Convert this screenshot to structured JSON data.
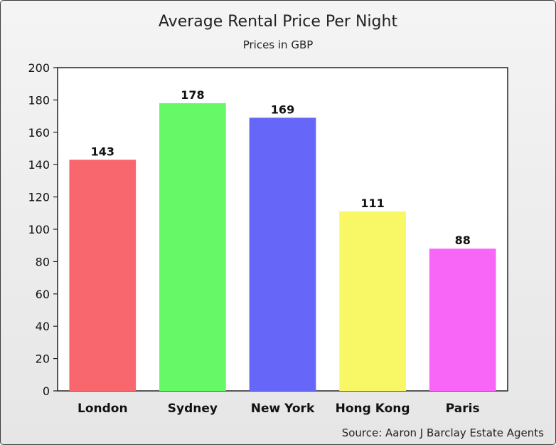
{
  "chart_data": {
    "type": "bar",
    "title": "Average Rental Price Per Night",
    "subtitle": "Prices in GBP",
    "categories": [
      "London",
      "Sydney",
      "New York",
      "Hong Kong",
      "Paris"
    ],
    "values": [
      143,
      178,
      169,
      111,
      88
    ],
    "data_labels": [
      "143",
      "178",
      "169",
      "111",
      "88"
    ],
    "colors": [
      "#f8666e",
      "#66f866",
      "#6666f8",
      "#f8f866",
      "#f866f8"
    ],
    "ylim": [
      0,
      200
    ],
    "yticks": [
      0,
      20,
      40,
      60,
      80,
      100,
      120,
      140,
      160,
      180,
      200
    ],
    "ytick_labels": [
      "0",
      "20",
      "40",
      "60",
      "80",
      "100",
      "120",
      "140",
      "160",
      "180",
      "200"
    ],
    "grid": false,
    "legend": "none",
    "xlabel": "",
    "ylabel": ""
  },
  "source": "Source: Aaron J Barclay Estate Agents"
}
